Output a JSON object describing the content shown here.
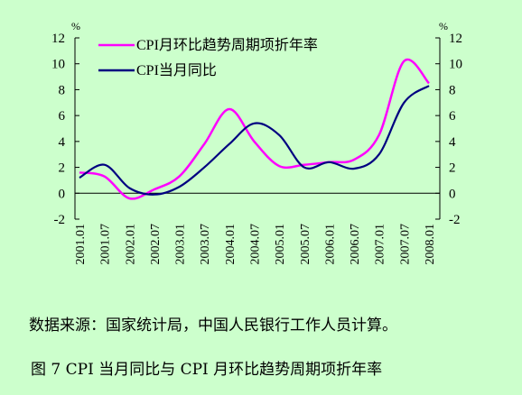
{
  "chart_data": {
    "type": "line",
    "x": [
      "2001.01",
      "2001.07",
      "2002.01",
      "2002.07",
      "2003.01",
      "2003.07",
      "2004.01",
      "2004.07",
      "2005.01",
      "2005.07",
      "2006.01",
      "2006.07",
      "2007.01",
      "2007.07",
      "2008.01"
    ],
    "series": [
      {
        "name": "CPI月环比趋势周期项折年率",
        "color": "#ff00ff",
        "values": [
          1.6,
          1.3,
          -0.4,
          0.3,
          1.3,
          3.8,
          6.5,
          4.0,
          2.1,
          2.2,
          2.4,
          2.6,
          4.5,
          10.2,
          8.5
        ]
      },
      {
        "name": "CPI当月同比",
        "color": "#000080",
        "values": [
          1.2,
          2.2,
          0.4,
          -0.1,
          0.5,
          2.0,
          3.8,
          5.4,
          4.5,
          2.0,
          2.4,
          1.9,
          3.0,
          7.0,
          8.3
        ]
      }
    ],
    "ylim": [
      -2,
      12
    ],
    "yticks": [
      "-2",
      "0",
      "2",
      "4",
      "6",
      "8",
      "10",
      "12"
    ],
    "yunit": "%"
  },
  "source_note": "数据来源：国家统计局，中国人民银行工作人员计算。",
  "caption": "图  7  CPI 当月同比与 CPI 月环比趋势周期项折年率"
}
